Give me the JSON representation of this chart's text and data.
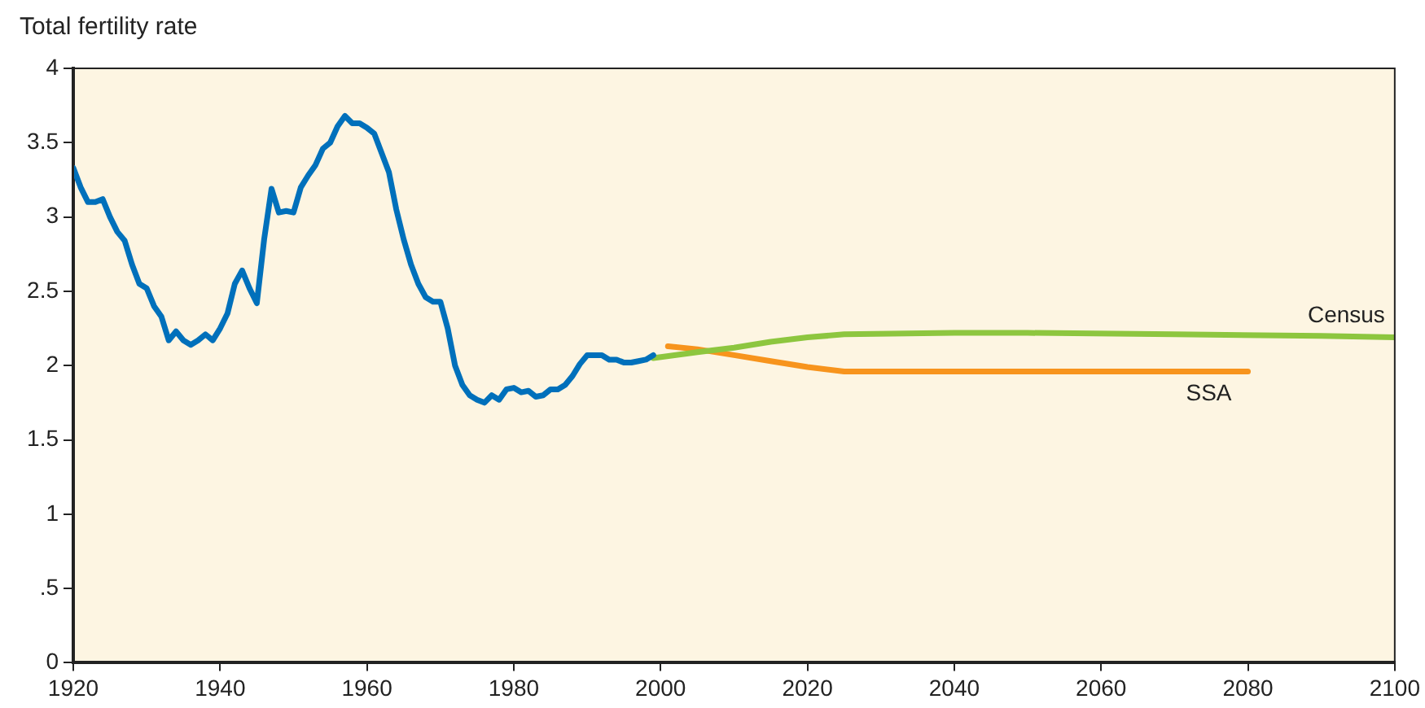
{
  "chart_data": {
    "type": "line",
    "ylabel": "Total fertility rate",
    "xlim": [
      1920,
      2100
    ],
    "xticks": [
      1920,
      1940,
      1960,
      1980,
      2000,
      2020,
      2040,
      2060,
      2080,
      2100
    ],
    "ylim": [
      0,
      4
    ],
    "yticks": [
      0,
      {
        "value": 0.5,
        "label": ".5"
      },
      1,
      1.5,
      2,
      2.5,
      3,
      3.5,
      4
    ],
    "grid": false,
    "legend": false,
    "marker": "none",
    "line_style": "solid",
    "series": [
      {
        "color": "#0070bb",
        "x": [
          1920,
          1921,
          1922,
          1923,
          1924,
          1925,
          1926,
          1927,
          1928,
          1929,
          1930,
          1931,
          1932,
          1933,
          1934,
          1935,
          1936,
          1937,
          1938,
          1939,
          1940,
          1941,
          1942,
          1943,
          1944,
          1945,
          1946,
          1947,
          1948,
          1949,
          1950,
          1951,
          1952,
          1953,
          1954,
          1955,
          1956,
          1957,
          1958,
          1959,
          1960,
          1961,
          1962,
          1963,
          1964,
          1965,
          1966,
          1967,
          1968,
          1969,
          1970,
          1971,
          1972,
          1973,
          1974,
          1975,
          1976,
          1977,
          1978,
          1979,
          1980,
          1981,
          1982,
          1983,
          1984,
          1985,
          1986,
          1987,
          1988,
          1989,
          1990,
          1991,
          1992,
          1993,
          1994,
          1995,
          1996,
          1997,
          1998,
          1999
        ],
        "values": [
          3.33,
          3.2,
          3.1,
          3.1,
          3.12,
          3.0,
          2.9,
          2.84,
          2.68,
          2.55,
          2.52,
          2.4,
          2.33,
          2.17,
          2.23,
          2.17,
          2.14,
          2.17,
          2.21,
          2.17,
          2.25,
          2.35,
          2.55,
          2.64,
          2.52,
          2.42,
          2.85,
          3.19,
          3.03,
          3.04,
          3.03,
          3.2,
          3.28,
          3.35,
          3.46,
          3.5,
          3.61,
          3.68,
          3.63,
          3.63,
          3.6,
          3.56,
          3.43,
          3.3,
          3.05,
          2.85,
          2.68,
          2.55,
          2.46,
          2.43,
          2.43,
          2.25,
          2.0,
          1.87,
          1.8,
          1.77,
          1.75,
          1.8,
          1.77,
          1.84,
          1.85,
          1.82,
          1.83,
          1.79,
          1.8,
          1.84,
          1.84,
          1.87,
          1.93,
          2.01,
          2.07,
          2.07,
          2.07,
          2.04,
          2.04,
          2.02,
          2.02,
          2.03,
          2.04,
          2.07
        ]
      },
      {
        "name": "Census",
        "color": "#8dc63f",
        "x": [
          1999,
          2005,
          2010,
          2015,
          2020,
          2025,
          2040,
          2050,
          2070,
          2090,
          2100
        ],
        "values": [
          2.05,
          2.09,
          2.12,
          2.16,
          2.19,
          2.21,
          2.22,
          2.22,
          2.21,
          2.2,
          2.19
        ]
      },
      {
        "name": "SSA",
        "color": "#f7941d",
        "x": [
          2001,
          2005,
          2010,
          2015,
          2020,
          2025,
          2040,
          2060,
          2080
        ],
        "values": [
          2.13,
          2.11,
          2.07,
          2.03,
          1.99,
          1.96,
          1.96,
          1.96,
          1.96
        ]
      }
    ]
  }
}
